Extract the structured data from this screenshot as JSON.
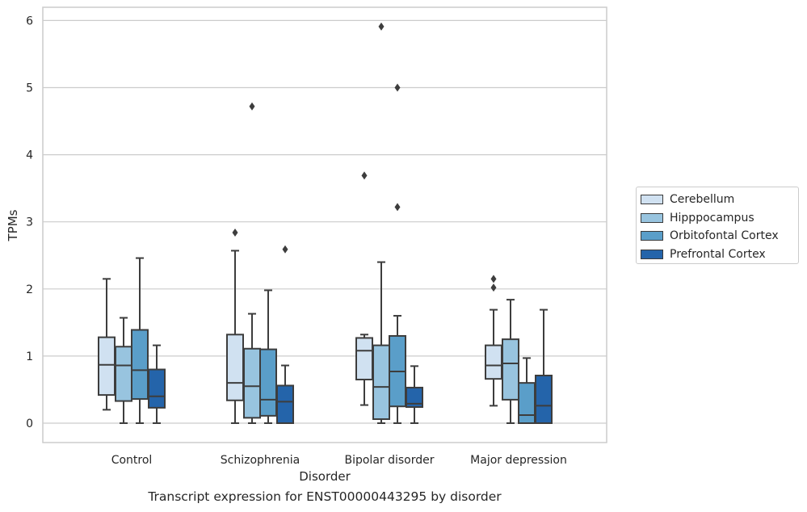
{
  "chart_data": {
    "type": "boxplot",
    "title": "",
    "caption": "Transcript expression for ENST00000443295 by disorder",
    "xlabel": "Disorder",
    "ylabel": "TPMs",
    "ylim": [
      -0.28,
      6.2
    ],
    "yticks": [
      "0",
      "1",
      "2",
      "3",
      "4",
      "5",
      "6"
    ],
    "grid": "horizontal",
    "legend_position": "right",
    "categories": [
      "Control",
      "Schizophrenia",
      "Bipolar disorder",
      "Major depression"
    ],
    "series": [
      {
        "name": "Cerebellum",
        "color": "#d0e1f1",
        "boxes": [
          {
            "whislo": 0.2,
            "q1": 0.42,
            "med": 0.87,
            "q3": 1.28,
            "whishi": 2.15,
            "fliers": []
          },
          {
            "whislo": 0.0,
            "q1": 0.34,
            "med": 0.6,
            "q3": 1.32,
            "whishi": 2.57,
            "fliers": [
              2.84
            ]
          },
          {
            "whislo": 0.27,
            "q1": 0.65,
            "med": 1.08,
            "q3": 1.27,
            "whishi": 1.32,
            "fliers": [
              3.69
            ]
          },
          {
            "whislo": 0.26,
            "q1": 0.66,
            "med": 0.86,
            "q3": 1.16,
            "whishi": 1.69,
            "fliers": [
              2.02,
              2.15
            ]
          }
        ]
      },
      {
        "name": "Hipppocampus",
        "color": "#98c4df",
        "boxes": [
          {
            "whislo": 0.0,
            "q1": 0.33,
            "med": 0.86,
            "q3": 1.14,
            "whishi": 1.57,
            "fliers": []
          },
          {
            "whislo": 0.0,
            "q1": 0.08,
            "med": 0.55,
            "q3": 1.11,
            "whishi": 1.63,
            "fliers": [
              4.72
            ]
          },
          {
            "whislo": 0.0,
            "q1": 0.06,
            "med": 0.54,
            "q3": 1.16,
            "whishi": 2.4,
            "fliers": [
              5.91
            ]
          },
          {
            "whislo": 0.0,
            "q1": 0.35,
            "med": 0.89,
            "q3": 1.25,
            "whishi": 1.84,
            "fliers": []
          }
        ]
      },
      {
        "name": "Orbitofontal Cortex",
        "color": "#5a9ec9",
        "boxes": [
          {
            "whislo": 0.0,
            "q1": 0.36,
            "med": 0.79,
            "q3": 1.39,
            "whishi": 2.46,
            "fliers": []
          },
          {
            "whislo": 0.0,
            "q1": 0.11,
            "med": 0.35,
            "q3": 1.1,
            "whishi": 1.98,
            "fliers": []
          },
          {
            "whislo": 0.0,
            "q1": 0.25,
            "med": 0.77,
            "q3": 1.3,
            "whishi": 1.6,
            "fliers": [
              3.22,
              5.0
            ]
          },
          {
            "whislo": 0.0,
            "q1": 0.0,
            "med": 0.12,
            "q3": 0.6,
            "whishi": 0.97,
            "fliers": []
          }
        ]
      },
      {
        "name": "Prefrontal Cortex",
        "color": "#2464aa",
        "boxes": [
          {
            "whislo": 0.0,
            "q1": 0.23,
            "med": 0.4,
            "q3": 0.8,
            "whishi": 1.16,
            "fliers": []
          },
          {
            "whislo": 0.0,
            "q1": 0.0,
            "med": 0.32,
            "q3": 0.56,
            "whishi": 0.86,
            "fliers": [
              2.59
            ]
          },
          {
            "whislo": 0.0,
            "q1": 0.24,
            "med": 0.29,
            "q3": 0.53,
            "whishi": 0.85,
            "fliers": []
          },
          {
            "whislo": 0.0,
            "q1": 0.0,
            "med": 0.26,
            "q3": 0.71,
            "whishi": 1.69,
            "fliers": []
          }
        ]
      }
    ]
  }
}
